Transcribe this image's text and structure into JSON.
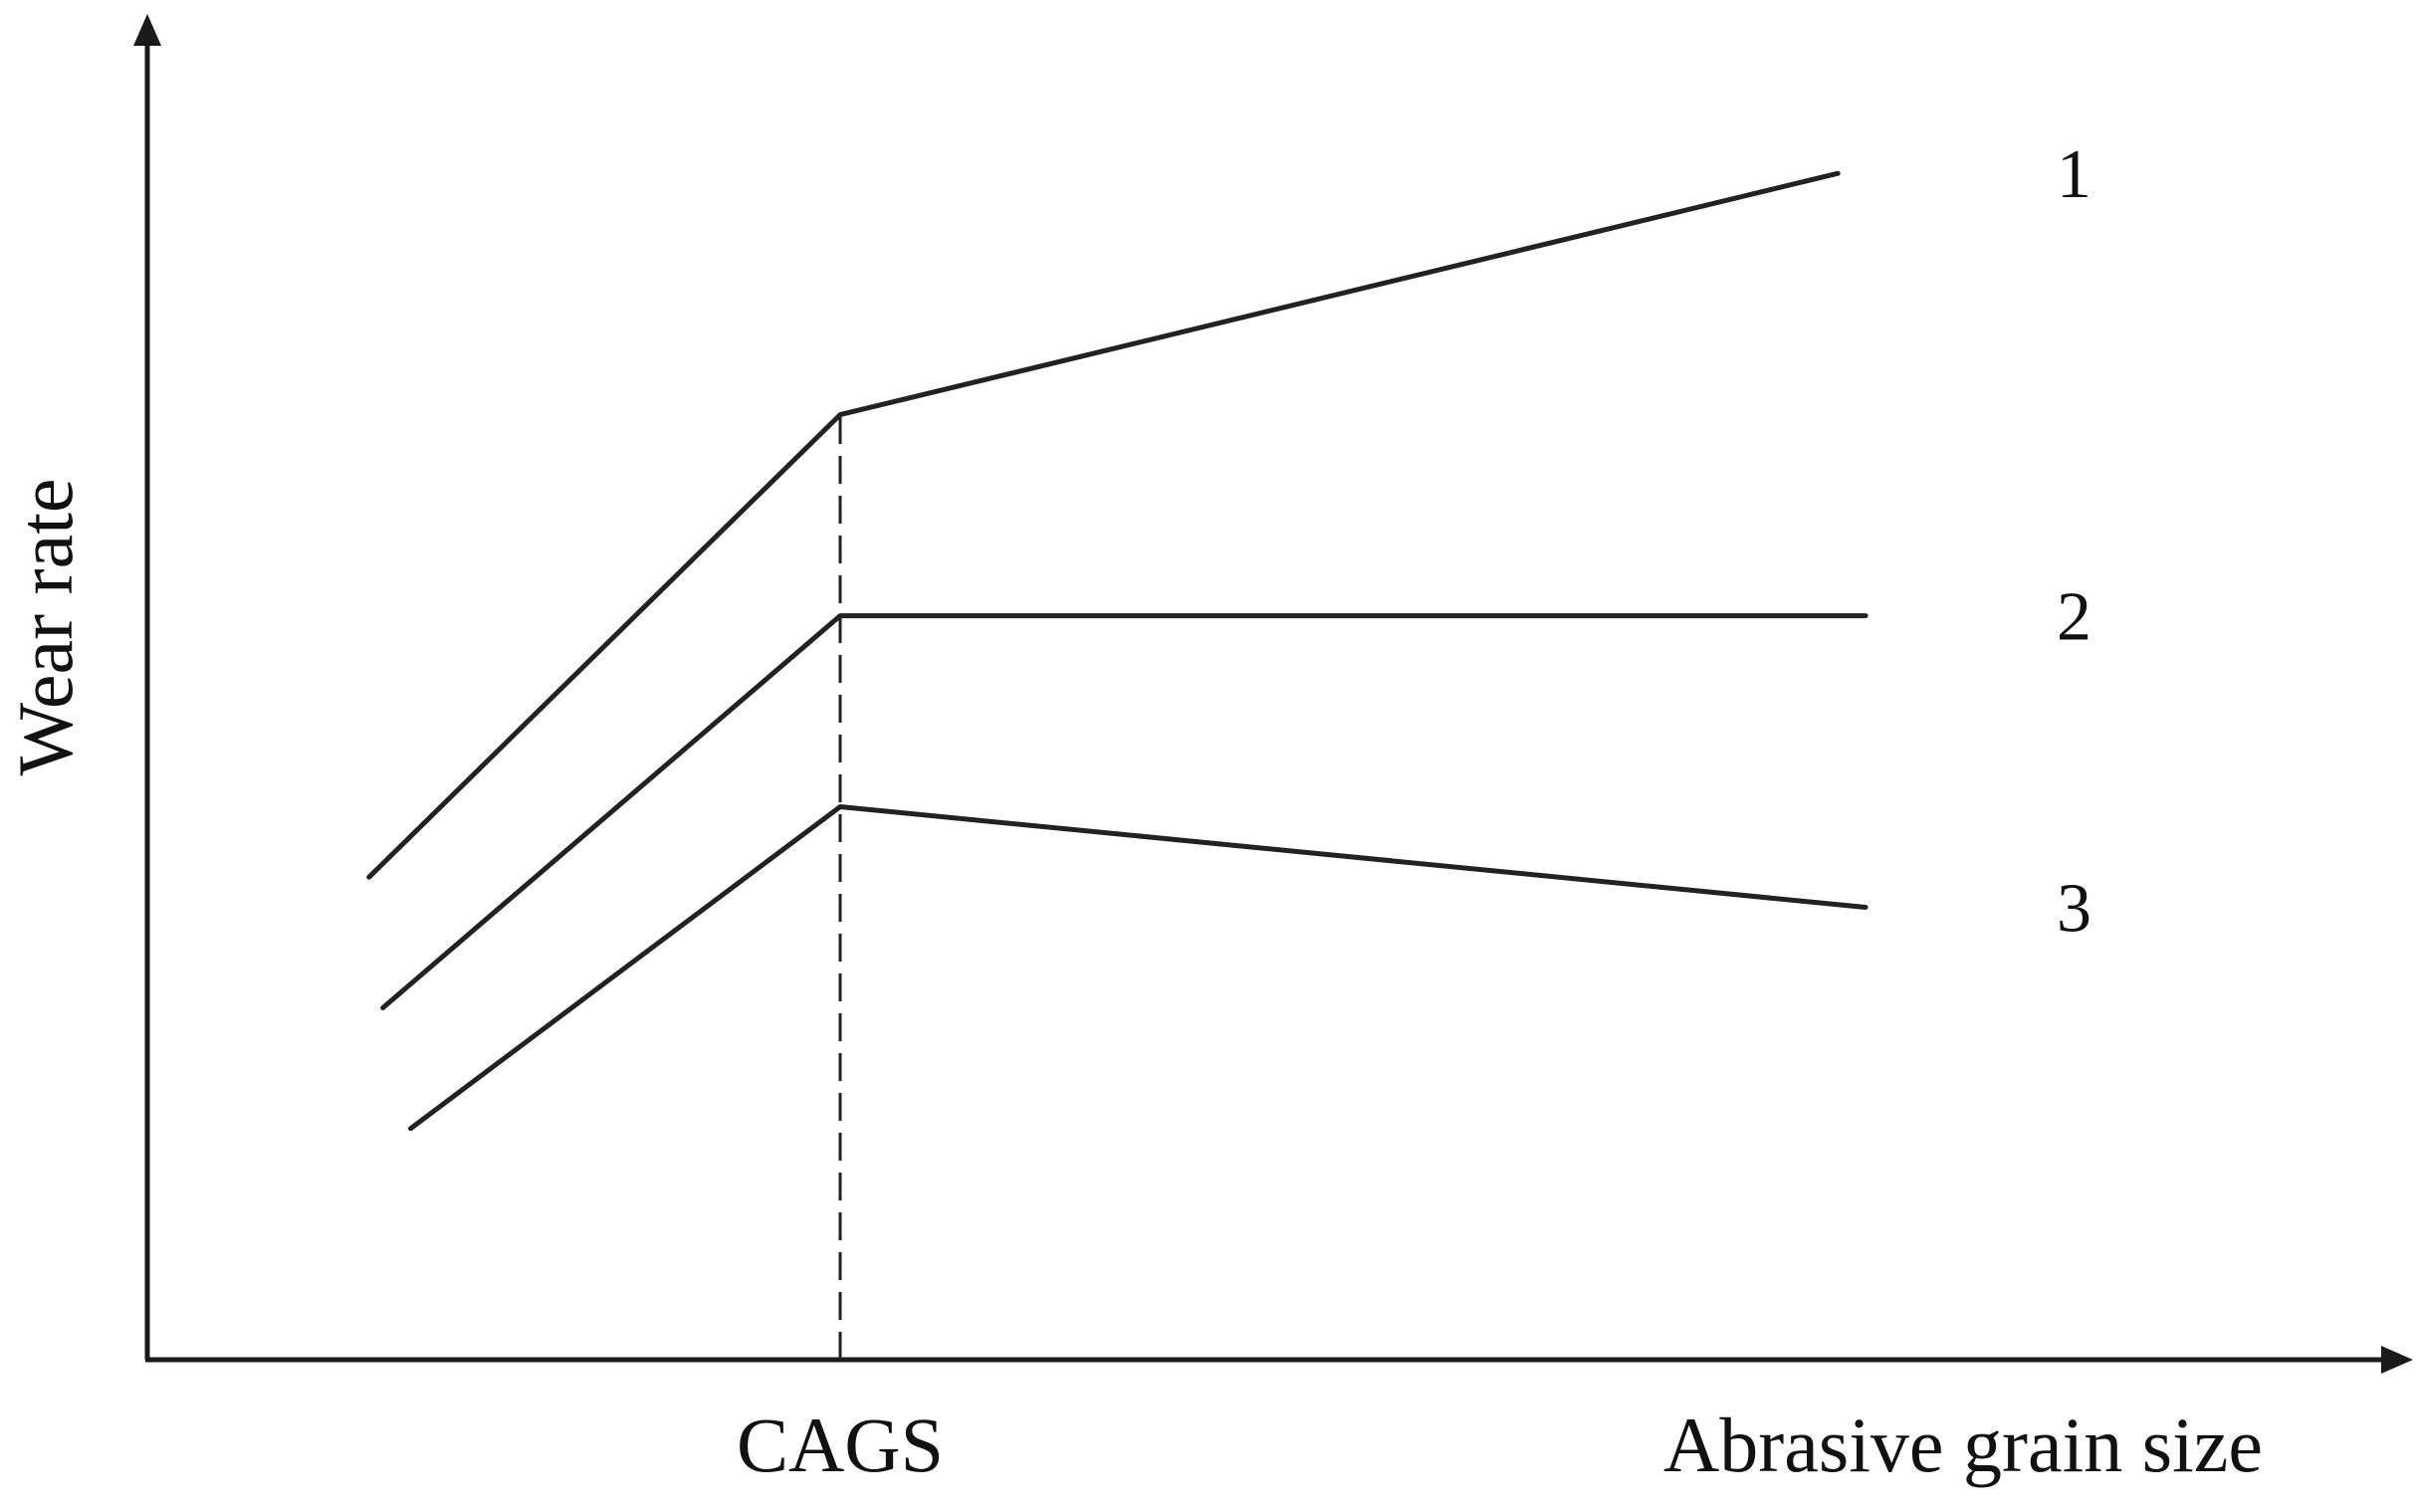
{
  "chart_data": {
    "type": "line",
    "xlabel": "Abrasive grain size",
    "ylabel": "Wear rate",
    "x_ticks": [
      {
        "value": 0.5,
        "label": "CAGS"
      }
    ],
    "xlim": [
      0,
      1.5
    ],
    "ylim": [
      0,
      1
    ],
    "grid": false,
    "legend": "inline labels at line ends",
    "reference_lines": [
      {
        "axis": "x",
        "value": 0.5,
        "style": "dashed",
        "label": "CAGS"
      }
    ],
    "series": [
      {
        "name": "1",
        "x": [
          0.16,
          0.5,
          1.22
        ],
        "y": [
          0.48,
          0.94,
          1.18
        ]
      },
      {
        "name": "2",
        "x": [
          0.17,
          0.5,
          1.24
        ],
        "y": [
          0.35,
          0.74,
          0.74
        ]
      },
      {
        "name": "3",
        "x": [
          0.19,
          0.5,
          1.24
        ],
        "y": [
          0.23,
          0.55,
          0.45
        ]
      }
    ]
  }
}
